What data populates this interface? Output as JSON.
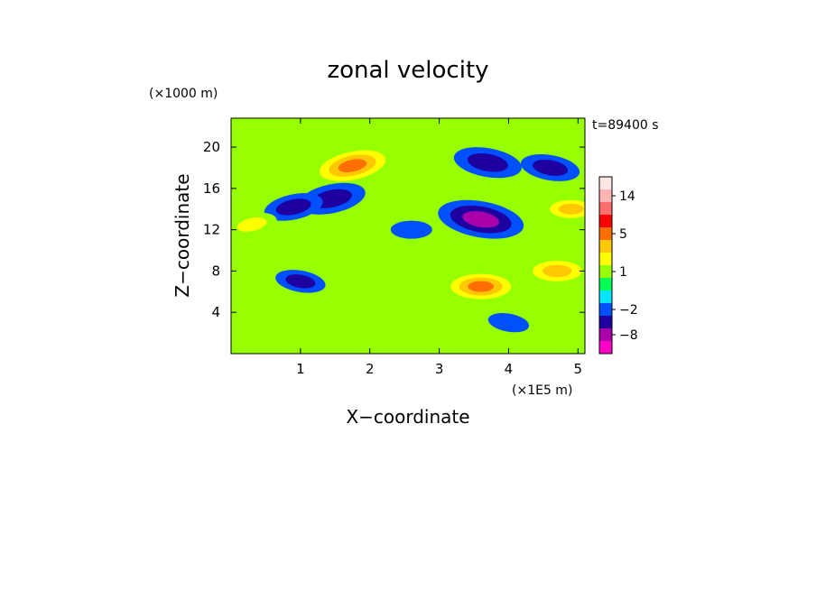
{
  "chart_data": {
    "type": "heatmap",
    "title": "zonal velocity",
    "xlabel": "X−coordinate",
    "ylabel": "Z−coordinate",
    "x_unit": "(×1E5 m)",
    "y_unit": "(×1000 m)",
    "time_label": "t=89400 s",
    "xlim": [
      0,
      5.1
    ],
    "ylim": [
      0,
      22.8
    ],
    "x_ticks": [
      1,
      2,
      3,
      4,
      5
    ],
    "y_ticks": [
      4,
      8,
      12,
      16,
      20
    ],
    "x_tick_labels": [
      "1",
      "2",
      "3",
      "4",
      "5"
    ],
    "y_tick_labels": [
      "4",
      "8",
      "12",
      "16",
      "20"
    ],
    "colorbar": {
      "levels": [
        -14,
        -8,
        -5,
        -2,
        -1,
        0,
        1,
        2,
        3,
        5,
        8,
        11,
        14,
        17
      ],
      "colors": [
        "#ff00c8",
        "#aa00aa",
        "#1e00a0",
        "#0050ff",
        "#00e6ff",
        "#00ff55",
        "#96ff00",
        "#ffff00",
        "#ffc800",
        "#ff6e00",
        "#ff0000",
        "#ff6e6e",
        "#ffb4b4",
        "#ffe6e6"
      ],
      "tick_labels": [
        "14",
        "5",
        "1",
        "−2",
        "−8"
      ],
      "tick_values": [
        14,
        5,
        1,
        -2,
        -8
      ]
    },
    "field_features": [
      {
        "x": 1.75,
        "z": 18.2,
        "value": 6
      },
      {
        "x": 1.45,
        "z": 15.0,
        "value": -4
      },
      {
        "x": 0.9,
        "z": 14.2,
        "value": -3
      },
      {
        "x": 3.6,
        "z": 13.0,
        "value": -6
      },
      {
        "x": 3.7,
        "z": 18.5,
        "value": -4
      },
      {
        "x": 4.6,
        "z": 18.0,
        "value": -3
      },
      {
        "x": 3.6,
        "z": 6.5,
        "value": 5
      },
      {
        "x": 4.7,
        "z": 8.0,
        "value": 4
      },
      {
        "x": 4.9,
        "z": 14.0,
        "value": 3
      },
      {
        "x": 0.3,
        "z": 12.5,
        "value": 2
      },
      {
        "x": 1.0,
        "z": 7.0,
        "value": -2
      },
      {
        "x": 2.6,
        "z": 12.0,
        "value": -1
      },
      {
        "x": 2.2,
        "z": 4.5,
        "value": 1
      },
      {
        "x": 4.0,
        "z": 3.0,
        "value": -1
      },
      {
        "x": 0.2,
        "z": 20.5,
        "value": 1
      }
    ]
  }
}
